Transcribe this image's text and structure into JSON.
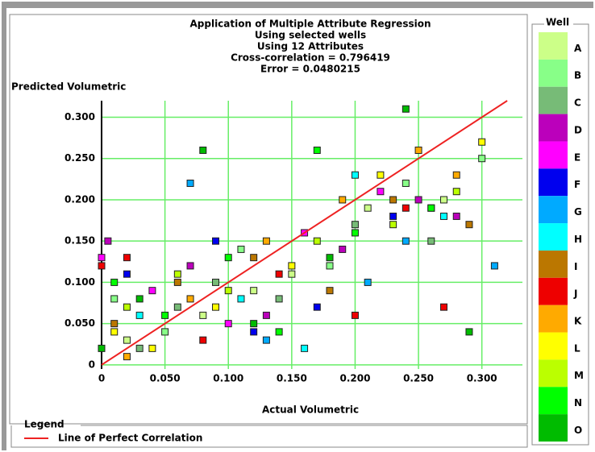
{
  "chart_data": {
    "type": "scatter",
    "title": [
      "Application of Multiple Attribute Regression",
      "Using selected wells",
      "Using 12 Attributes",
      "Cross-correlation = 0.796419",
      "Error = 0.0480215"
    ],
    "x_label": "Actual Volumetric",
    "y_label": "Predicted Volumetric",
    "legend_title": "Well",
    "legend_box_title": "Legend",
    "reference_line": {
      "name": "Line of Perfect Correlation",
      "color": "#ee2222"
    },
    "xlim": [
      0,
      0.332
    ],
    "ylim": [
      -0.005,
      0.32
    ],
    "xticks": [
      0,
      {
        "value": 0.05,
        "label": "0.050"
      },
      {
        "value": 0.1,
        "label": "0.100"
      },
      {
        "value": 0.15,
        "label": "0.150"
      },
      {
        "value": 0.2,
        "label": "0.200"
      },
      {
        "value": 0.25,
        "label": "0.250"
      },
      {
        "value": 0.3,
        "label": "0.300"
      }
    ],
    "yticks": [
      0,
      {
        "value": 0.05,
        "label": "0.050"
      },
      {
        "value": 0.1,
        "label": "0.100"
      },
      {
        "value": 0.15,
        "label": "0.150"
      },
      {
        "value": 0.2,
        "label": "0.200"
      },
      {
        "value": 0.25,
        "label": "0.250"
      },
      {
        "value": 0.3,
        "label": "0.300"
      }
    ],
    "grid": true,
    "series": [
      {
        "name": "A",
        "color": "#ccff88",
        "x": [
          0.02,
          0.08,
          0.15,
          0.21,
          0.27,
          0.12
        ],
        "values": [
          0.03,
          0.06,
          0.11,
          0.19,
          0.2,
          0.09
        ]
      },
      {
        "name": "B",
        "color": "#88ff88",
        "x": [
          0.01,
          0.05,
          0.11,
          0.18,
          0.24,
          0.3
        ],
        "values": [
          0.08,
          0.04,
          0.14,
          0.12,
          0.22,
          0.25
        ]
      },
      {
        "name": "C",
        "color": "#77bb77",
        "x": [
          0.03,
          0.09,
          0.14,
          0.2,
          0.26,
          0.06
        ],
        "values": [
          0.02,
          0.1,
          0.08,
          0.17,
          0.15,
          0.07
        ]
      },
      {
        "name": "D",
        "color": "#bb00bb",
        "x": [
          0.005,
          0.07,
          0.13,
          0.19,
          0.25,
          0.28
        ],
        "values": [
          0.15,
          0.12,
          0.06,
          0.14,
          0.2,
          0.18
        ]
      },
      {
        "name": "E",
        "color": "#ff00ff",
        "x": [
          0.04,
          0.1,
          0.16,
          0.22,
          0.0
        ],
        "values": [
          0.09,
          0.05,
          0.16,
          0.21,
          0.13
        ]
      },
      {
        "name": "F",
        "color": "#0000ee",
        "x": [
          0.02,
          0.09,
          0.17,
          0.23,
          0.26,
          0.12
        ],
        "values": [
          0.11,
          0.15,
          0.07,
          0.18,
          0.19,
          0.04
        ]
      },
      {
        "name": "G",
        "color": "#00aaff",
        "x": [
          0.07,
          0.13,
          0.21,
          0.24,
          0.31
        ],
        "values": [
          0.22,
          0.03,
          0.1,
          0.15,
          0.12
        ]
      },
      {
        "name": "H",
        "color": "#00ffff",
        "x": [
          0.03,
          0.11,
          0.16,
          0.2,
          0.27
        ],
        "values": [
          0.06,
          0.08,
          0.02,
          0.23,
          0.18
        ]
      },
      {
        "name": "I",
        "color": "#bb7700",
        "x": [
          0.01,
          0.06,
          0.12,
          0.18,
          0.23,
          0.29
        ],
        "values": [
          0.05,
          0.1,
          0.13,
          0.09,
          0.2,
          0.17
        ]
      },
      {
        "name": "J",
        "color": "#ee0000",
        "x": [
          0.0,
          0.08,
          0.14,
          0.2,
          0.24,
          0.27,
          0.02
        ],
        "values": [
          0.12,
          0.03,
          0.11,
          0.06,
          0.19,
          0.07,
          0.13
        ]
      },
      {
        "name": "K",
        "color": "#ffaa00",
        "x": [
          0.02,
          0.07,
          0.13,
          0.19,
          0.25,
          0.28
        ],
        "values": [
          0.01,
          0.08,
          0.15,
          0.2,
          0.26,
          0.23
        ]
      },
      {
        "name": "L",
        "color": "#ffff00",
        "x": [
          0.01,
          0.04,
          0.09,
          0.15,
          0.22,
          0.3
        ],
        "values": [
          0.04,
          0.02,
          0.07,
          0.12,
          0.23,
          0.27
        ]
      },
      {
        "name": "M",
        "color": "#bbff00",
        "x": [
          0.02,
          0.06,
          0.1,
          0.17,
          0.23,
          0.28
        ],
        "values": [
          0.07,
          0.11,
          0.09,
          0.15,
          0.17,
          0.21
        ]
      },
      {
        "name": "N",
        "color": "#00ff00",
        "x": [
          0.01,
          0.05,
          0.1,
          0.14,
          0.2,
          0.26,
          0.17
        ],
        "values": [
          0.1,
          0.06,
          0.13,
          0.04,
          0.16,
          0.19,
          0.26
        ]
      },
      {
        "name": "O",
        "color": "#00bb00",
        "x": [
          0.03,
          0.08,
          0.12,
          0.18,
          0.24,
          0.29,
          0.0
        ],
        "values": [
          0.08,
          0.26,
          0.05,
          0.13,
          0.31,
          0.04,
          0.02
        ]
      }
    ]
  }
}
